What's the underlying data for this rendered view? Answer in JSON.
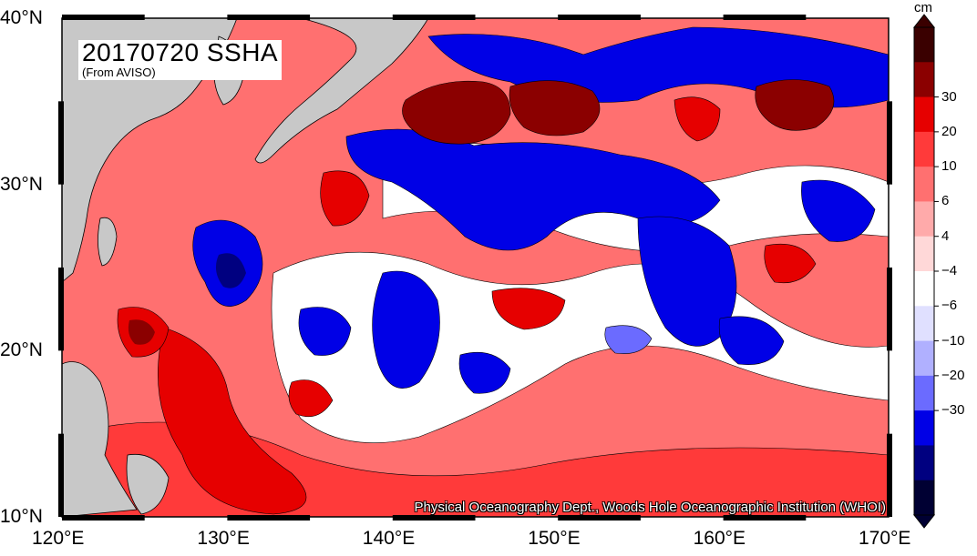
{
  "title": {
    "main": "20170720 SSHA",
    "sub": "(From AVISO)"
  },
  "credit": "Physical Oceanography Dept., Woods Hole Oceanographic Institution (WHOI)",
  "map": {
    "lon_range": [
      120,
      170
    ],
    "lat_range": [
      10,
      40
    ],
    "x_ticks": [
      "120°E",
      "130°E",
      "140°E",
      "150°E",
      "160°E",
      "170°E"
    ],
    "y_ticks": [
      "40°N",
      "30°N",
      "20°N",
      "10°N"
    ],
    "land_color": "#c8c8c8"
  },
  "colorbar": {
    "unit": "cm",
    "tick_labels": [
      "30",
      "20",
      "10",
      "6",
      "4",
      "−4",
      "−6",
      "−10",
      "−20",
      "−30"
    ],
    "colors": [
      "#000033",
      "#000080",
      "#0000e6",
      "#6b6bff",
      "#b0b0ff",
      "#e0e0ff",
      "#ffffff",
      "#ffd8d8",
      "#ffaaaa",
      "#ff7070",
      "#ff3a3a",
      "#e60000",
      "#8b0000",
      "#3a0000"
    ]
  }
}
